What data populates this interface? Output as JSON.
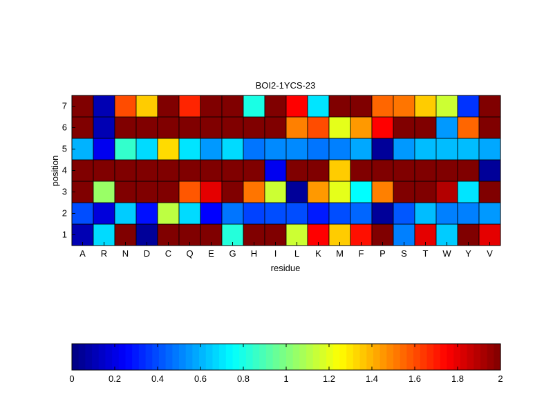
{
  "figure": {
    "title": "BOI2-1YCS-23"
  },
  "chart_data": {
    "type": "heatmap",
    "title": "BOI2-1YCS-23",
    "xlabel": "residue",
    "ylabel": "position",
    "x_categories": [
      "A",
      "R",
      "N",
      "D",
      "C",
      "Q",
      "E",
      "G",
      "H",
      "I",
      "L",
      "K",
      "M",
      "F",
      "P",
      "S",
      "T",
      "W",
      "Y",
      "V"
    ],
    "y_categories": [
      "1",
      "2",
      "3",
      "4",
      "5",
      "6",
      "7"
    ],
    "value_range": [
      0,
      2
    ],
    "colormap": "jet",
    "values": [
      [
        0.1,
        0.68,
        2.0,
        0.05,
        2.0,
        2.0,
        2.0,
        0.82,
        2.0,
        2.0,
        1.15,
        1.75,
        1.35,
        1.72,
        2.0,
        0.5,
        1.8,
        0.65,
        2.0,
        1.8
      ],
      [
        0.4,
        0.18,
        0.65,
        0.28,
        1.12,
        0.68,
        0.25,
        0.48,
        0.38,
        0.4,
        0.4,
        0.3,
        0.4,
        0.45,
        0.05,
        0.42,
        0.62,
        0.5,
        0.5,
        0.55
      ],
      [
        2.0,
        1.05,
        2.0,
        2.0,
        2.0,
        1.58,
        1.8,
        2.0,
        1.52,
        1.15,
        0.05,
        1.45,
        1.2,
        0.75,
        1.5,
        2.0,
        2.0,
        1.9,
        0.7,
        2.0
      ],
      [
        2.0,
        2.0,
        2.0,
        2.0,
        2.0,
        2.0,
        2.0,
        2.0,
        2.0,
        0.22,
        2.0,
        2.0,
        1.35,
        2.0,
        2.0,
        2.0,
        2.0,
        2.0,
        2.0,
        0.05
      ],
      [
        0.6,
        0.22,
        0.85,
        0.68,
        1.32,
        0.7,
        0.55,
        0.68,
        0.48,
        0.52,
        0.52,
        0.48,
        0.5,
        0.58,
        0.05,
        0.55,
        0.62,
        0.62,
        0.62,
        0.58
      ],
      [
        2.0,
        0.1,
        2.0,
        2.0,
        2.0,
        2.0,
        2.0,
        2.0,
        2.0,
        2.0,
        1.5,
        1.6,
        1.2,
        1.45,
        1.75,
        2.0,
        2.0,
        0.55,
        1.55,
        2.0
      ],
      [
        2.0,
        0.1,
        1.6,
        1.35,
        2.0,
        1.68,
        2.0,
        2.0,
        0.8,
        2.0,
        1.75,
        0.7,
        2.0,
        2.0,
        1.55,
        1.52,
        1.35,
        1.15,
        0.35,
        2.0
      ]
    ],
    "colorbar": {
      "ticks": [
        0,
        0.2,
        0.4,
        0.6,
        0.8,
        1,
        1.2,
        1.4,
        1.6,
        1.8,
        2
      ],
      "tick_labels": [
        "0",
        "0.2",
        "0.4",
        "0.6",
        "0.8",
        "1",
        "1.2",
        "1.4",
        "1.6",
        "1.8",
        "2"
      ]
    }
  }
}
